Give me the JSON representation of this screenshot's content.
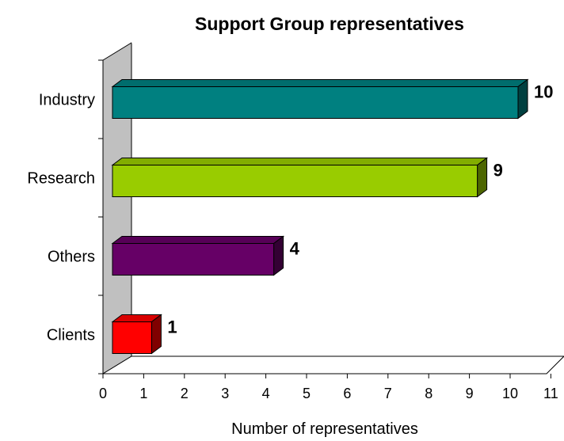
{
  "chart_data": {
    "type": "bar",
    "orientation": "horizontal",
    "title": "Support Group representatives",
    "xlabel": "Number of representatives",
    "ylabel": "",
    "categories": [
      "Industry",
      "Research",
      "Others",
      "Clients"
    ],
    "values": [
      10,
      9,
      4,
      1
    ],
    "colors": [
      "#008080",
      "#99cc00",
      "#660066",
      "#ff0000"
    ],
    "xlim": [
      0,
      11
    ],
    "xticks": [
      "0",
      "1",
      "2",
      "3",
      "4",
      "5",
      "6",
      "7",
      "8",
      "9",
      "10",
      "11"
    ],
    "grid": false,
    "legend": "none",
    "style": "3d"
  }
}
